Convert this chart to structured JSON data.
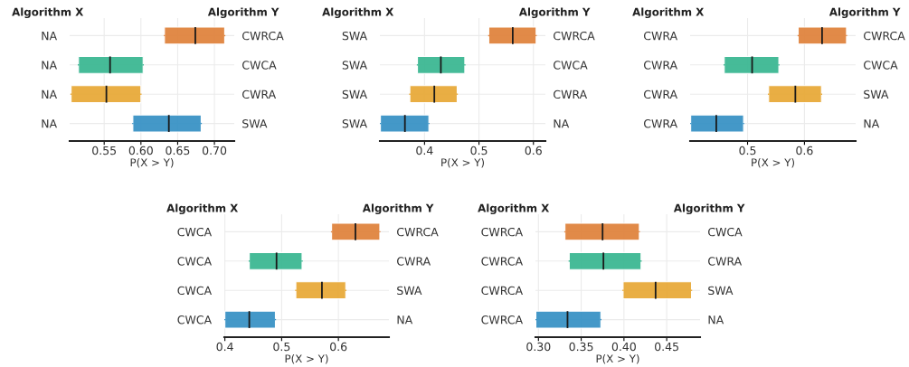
{
  "chart_data": [
    {
      "type": "box",
      "orientation": "horizontal",
      "ylabel": "Algorithm X",
      "y2label": "Algorithm Y",
      "xlabel": "P(X > Y)",
      "categories": [
        "NA",
        "NA",
        "NA",
        "NA"
      ],
      "y2_categories": [
        "CWRCA",
        "CWCA",
        "CWRA",
        "SWA"
      ],
      "xlim": [
        0.503,
        0.727
      ],
      "xticks": [
        {
          "value": 0.55,
          "label": "0.55"
        },
        {
          "value": 0.6,
          "label": "0.60"
        },
        {
          "value": 0.65,
          "label": "0.65"
        },
        {
          "value": 0.7,
          "label": "0.70"
        }
      ],
      "grid": true,
      "colors": [
        "#e0843f",
        "#3db893",
        "#e8aa3a",
        "#3a93c6"
      ],
      "boxes": [
        {
          "low": 0.632,
          "q1": 0.632,
          "median": 0.674,
          "q3": 0.714,
          "high": 0.714
        },
        {
          "low": 0.515,
          "q1": 0.515,
          "median": 0.558,
          "q3": 0.603,
          "high": 0.603
        },
        {
          "low": 0.505,
          "q1": 0.505,
          "median": 0.553,
          "q3": 0.6,
          "high": 0.6
        },
        {
          "low": 0.589,
          "q1": 0.589,
          "median": 0.638,
          "q3": 0.682,
          "high": 0.682
        }
      ]
    },
    {
      "type": "box",
      "orientation": "horizontal",
      "ylabel": "Algorithm X",
      "y2label": "Algorithm Y",
      "xlabel": "P(X > Y)",
      "categories": [
        "SWA",
        "SWA",
        "SWA",
        "SWA"
      ],
      "y2_categories": [
        "CWRCA",
        "CWCA",
        "CWRA",
        "NA"
      ],
      "xlim": [
        0.318,
        0.622
      ],
      "xticks": [
        0.4,
        0.5,
        0.6
      ],
      "grid": true,
      "colors": [
        "#e0843f",
        "#3db893",
        "#e8aa3a",
        "#3a93c6"
      ],
      "boxes": [
        {
          "low": 0.518,
          "q1": 0.518,
          "median": 0.562,
          "q3": 0.605,
          "high": 0.605
        },
        {
          "low": 0.387,
          "q1": 0.387,
          "median": 0.43,
          "q3": 0.474,
          "high": 0.474
        },
        {
          "low": 0.373,
          "q1": 0.373,
          "median": 0.418,
          "q3": 0.46,
          "high": 0.46
        },
        {
          "low": 0.319,
          "q1": 0.319,
          "median": 0.364,
          "q3": 0.408,
          "high": 0.408
        }
      ]
    },
    {
      "type": "box",
      "orientation": "horizontal",
      "ylabel": "Algorithm X",
      "y2label": "Algorithm Y",
      "xlabel": "P(X > Y)",
      "categories": [
        "CWRA",
        "CWRA",
        "CWRA",
        "CWRA"
      ],
      "y2_categories": [
        "CWRCA",
        "CWCA",
        "SWA",
        "NA"
      ],
      "xlim": [
        0.399,
        0.69
      ],
      "xticks": [
        0.5,
        0.6
      ],
      "grid": true,
      "colors": [
        "#e0843f",
        "#3db893",
        "#e8aa3a",
        "#3a93c6"
      ],
      "boxes": [
        {
          "low": 0.589,
          "q1": 0.589,
          "median": 0.631,
          "q3": 0.674,
          "high": 0.674
        },
        {
          "low": 0.459,
          "q1": 0.459,
          "median": 0.508,
          "q3": 0.555,
          "high": 0.555
        },
        {
          "low": 0.537,
          "q1": 0.537,
          "median": 0.584,
          "q3": 0.63,
          "high": 0.63
        },
        {
          "low": 0.4,
          "q1": 0.4,
          "median": 0.445,
          "q3": 0.493,
          "high": 0.493
        }
      ]
    },
    {
      "type": "box",
      "orientation": "horizontal",
      "ylabel": "Algorithm X",
      "y2label": "Algorithm Y",
      "xlabel": "P(X > Y)",
      "categories": [
        "CWCA",
        "CWCA",
        "CWCA",
        "CWCA"
      ],
      "y2_categories": [
        "CWRCA",
        "CWRA",
        "SWA",
        "NA"
      ],
      "xlim": [
        0.399,
        0.689
      ],
      "xticks": [
        0.4,
        0.5,
        0.6
      ],
      "grid": true,
      "colors": [
        "#e0843f",
        "#3db893",
        "#e8aa3a",
        "#3a93c6"
      ],
      "boxes": [
        {
          "low": 0.588,
          "q1": 0.588,
          "median": 0.63,
          "q3": 0.673,
          "high": 0.673
        },
        {
          "low": 0.443,
          "q1": 0.443,
          "median": 0.491,
          "q3": 0.536,
          "high": 0.536
        },
        {
          "low": 0.525,
          "q1": 0.525,
          "median": 0.571,
          "q3": 0.613,
          "high": 0.613
        },
        {
          "low": 0.4,
          "q1": 0.4,
          "median": 0.443,
          "q3": 0.489,
          "high": 0.489
        }
      ]
    },
    {
      "type": "box",
      "orientation": "horizontal",
      "ylabel": "Algorithm X",
      "y2label": "Algorithm Y",
      "xlabel": "P(X > Y)",
      "categories": [
        "CWRCA",
        "CWRCA",
        "CWRCA",
        "CWRCA"
      ],
      "y2_categories": [
        "CWCA",
        "CWRA",
        "SWA",
        "NA"
      ],
      "xlim": [
        0.2965,
        0.489
      ],
      "xticks": [
        {
          "value": 0.3,
          "label": "0.30"
        },
        {
          "value": 0.35,
          "label": "0.35"
        },
        {
          "value": 0.4,
          "label": "0.40"
        },
        {
          "value": 0.45,
          "label": "0.45"
        }
      ],
      "grid": true,
      "colors": [
        "#e0843f",
        "#3db893",
        "#e8aa3a",
        "#3a93c6"
      ],
      "boxes": [
        {
          "low": 0.331,
          "q1": 0.331,
          "median": 0.375,
          "q3": 0.418,
          "high": 0.418
        },
        {
          "low": 0.336,
          "q1": 0.336,
          "median": 0.376,
          "q3": 0.42,
          "high": 0.42
        },
        {
          "low": 0.399,
          "q1": 0.399,
          "median": 0.437,
          "q3": 0.479,
          "high": 0.479
        },
        {
          "low": 0.297,
          "q1": 0.297,
          "median": 0.334,
          "q3": 0.373,
          "high": 0.373
        }
      ]
    }
  ]
}
